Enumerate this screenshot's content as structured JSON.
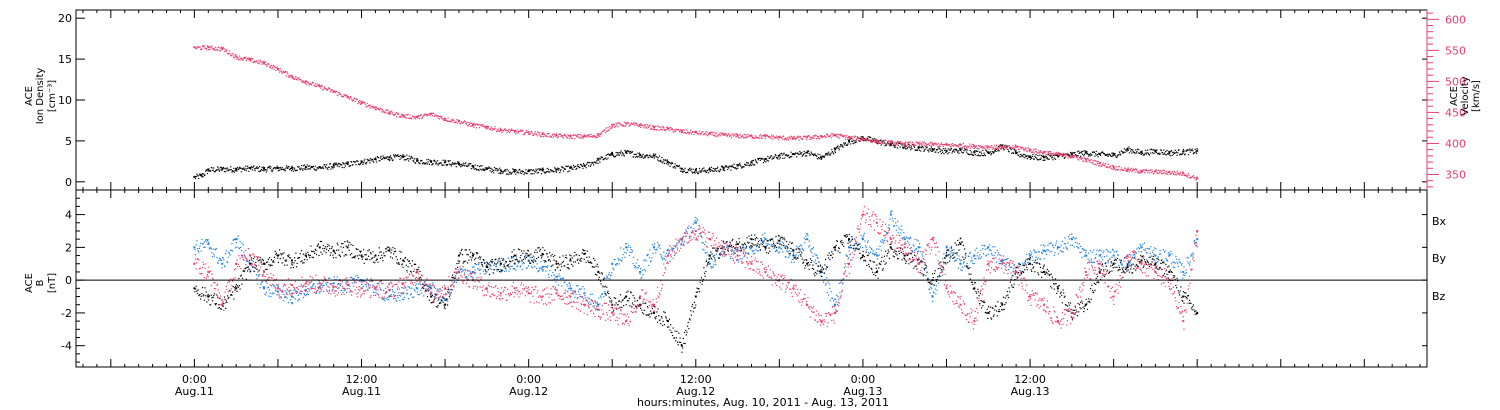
{
  "chart_data": {
    "panels": [
      {
        "type": "scatter",
        "ylabel_left": [
          "ACE",
          "Ion Density",
          "[cm⁻³]"
        ],
        "ylabel_right": [
          "ACE",
          "Velocity",
          "[km/s]"
        ],
        "ylim_left": [
          -1,
          21
        ],
        "yticks_left": [
          0,
          5,
          10,
          15,
          20
        ],
        "ylim_right": [
          325,
          615
        ],
        "yticks_right": [
          350,
          400,
          450,
          500,
          550,
          600
        ],
        "series": [
          {
            "name": "",
            "axis": "left",
            "color": "#000000",
            "x": [
              0,
              0.5,
              1,
              2,
              3,
              4,
              5,
              6,
              7,
              8,
              9,
              10,
              11,
              12,
              13,
              14,
              15,
              16,
              17,
              18,
              19,
              20,
              21,
              22,
              23,
              24,
              25,
              26,
              27,
              28,
              29,
              30,
              31,
              32,
              33,
              34,
              35,
              36,
              37,
              38,
              39,
              40,
              41,
              42,
              43,
              44,
              45,
              46,
              47,
              48,
              49,
              50,
              51,
              52,
              53,
              54,
              55,
              56,
              57,
              58,
              59,
              60,
              61,
              62,
              63,
              64,
              65,
              66,
              67,
              68,
              69,
              70,
              71,
              72
            ],
            "values": [
              0.6,
              0.8,
              1.5,
              1.6,
              1.6,
              1.7,
              1.6,
              1.7,
              1.7,
              1.8,
              1.8,
              2.0,
              2.2,
              2.5,
              2.8,
              3.0,
              3.1,
              2.6,
              2.5,
              2.4,
              2.2,
              1.9,
              1.6,
              1.4,
              1.3,
              1.3,
              1.4,
              1.5,
              1.7,
              2.0,
              2.7,
              3.4,
              3.6,
              3.3,
              3.2,
              2.4,
              1.6,
              1.4,
              1.5,
              1.7,
              2.0,
              2.4,
              2.8,
              3.2,
              3.4,
              3.6,
              3.0,
              4.0,
              5.0,
              5.4,
              5.0,
              4.6,
              4.4,
              4.2,
              4.0,
              3.8,
              3.9,
              3.6,
              3.6,
              4.4,
              3.5,
              3.1,
              3.0,
              3.2,
              3.4,
              3.6,
              3.4,
              3.3,
              4.0,
              3.6,
              3.8,
              3.6,
              3.7,
              3.8
            ]
          },
          {
            "name": "",
            "axis": "right",
            "color": "#e83e6c",
            "x": [
              0,
              1,
              2,
              3,
              4,
              5,
              6,
              7,
              8,
              9,
              10,
              11,
              12,
              13,
              14,
              15,
              16,
              17,
              18,
              19,
              20,
              21,
              22,
              23,
              24,
              25,
              26,
              27,
              28,
              29,
              30,
              31,
              32,
              33,
              34,
              35,
              36,
              37,
              38,
              39,
              40,
              41,
              42,
              43,
              44,
              45,
              46,
              47,
              48,
              49,
              50,
              51,
              52,
              53,
              54,
              55,
              56,
              57,
              58,
              59,
              60,
              61,
              62,
              63,
              64,
              65,
              66,
              67,
              68,
              69,
              70,
              71,
              72
            ],
            "values": [
              555,
              555,
              553,
              540,
              535,
              530,
              520,
              508,
              500,
              492,
              484,
              475,
              466,
              458,
              450,
              445,
              443,
              448,
              440,
              436,
              430,
              427,
              422,
              420,
              418,
              415,
              413,
              412,
              412,
              414,
              430,
              432,
              430,
              426,
              424,
              420,
              418,
              416,
              414,
              413,
              412,
              412,
              410,
              409,
              410,
              412,
              414,
              410,
              408,
              404,
              402,
              400,
              400,
              399,
              398,
              398,
              396,
              395,
              394,
              395,
              390,
              386,
              383,
              380,
              374,
              368,
              362,
              358,
              356,
              355,
              354,
              352,
              344
            ]
          }
        ]
      },
      {
        "type": "scatter",
        "ylabel_left": [
          "ACE",
          "B",
          "[nT]"
        ],
        "ylim": [
          -5.3,
          5.5
        ],
        "yticks": [
          -4,
          -2,
          0,
          2,
          4
        ],
        "zero_line": true,
        "legend": [
          {
            "label": "Bx",
            "color": "#000000"
          },
          {
            "label": "By",
            "color": "#1f7fdc"
          },
          {
            "label": "Bz",
            "color": "#e83e6c"
          }
        ],
        "series": [
          {
            "name": "Bx",
            "color": "#000000",
            "x": [
              0,
              1,
              2,
              3,
              4,
              5,
              6,
              7,
              8,
              9,
              10,
              11,
              12,
              13,
              14,
              15,
              16,
              17,
              18,
              19,
              20,
              21,
              22,
              23,
              24,
              25,
              26,
              27,
              28,
              29,
              30,
              31,
              32,
              33,
              34,
              35,
              36,
              37,
              38,
              39,
              40,
              41,
              42,
              43,
              44,
              45,
              46,
              47,
              48,
              49,
              50,
              51,
              52,
              53,
              54,
              55,
              56,
              57,
              58,
              59,
              60,
              61,
              62,
              63,
              64,
              65,
              66,
              67,
              68,
              69,
              70,
              71,
              72
            ],
            "values": [
              -0.5,
              -1.0,
              -1.5,
              -0.5,
              1.0,
              1.0,
              1.5,
              1.2,
              1.5,
              2.0,
              1.8,
              2.0,
              1.5,
              1.5,
              1.8,
              1.2,
              0.5,
              -1.0,
              -1.5,
              1.5,
              1.5,
              0.8,
              1.0,
              1.5,
              1.5,
              1.6,
              1.0,
              1.2,
              1.6,
              0.5,
              -1.5,
              -1.0,
              -1.5,
              -2.0,
              -2.5,
              -4.0,
              -1.0,
              1.5,
              2.0,
              2.2,
              2.5,
              2.0,
              2.4,
              1.8,
              1.0,
              0.5,
              2.0,
              2.5,
              1.5,
              0.5,
              2.0,
              1.5,
              1.0,
              0.0,
              1.5,
              2.2,
              -0.5,
              -2.0,
              -1.5,
              0.5,
              1.0,
              0.5,
              -0.5,
              -2.0,
              -1.5,
              0.5,
              1.0,
              0.8,
              1.2,
              1.0,
              0.5,
              -1.0,
              -2.0
            ]
          },
          {
            "name": "By",
            "color": "#1f7fdc",
            "x": [
              0,
              1,
              2,
              3,
              4,
              5,
              6,
              7,
              8,
              9,
              10,
              11,
              12,
              13,
              14,
              15,
              16,
              17,
              18,
              19,
              20,
              21,
              22,
              23,
              24,
              25,
              26,
              27,
              28,
              29,
              30,
              31,
              32,
              33,
              34,
              35,
              36,
              37,
              38,
              39,
              40,
              41,
              42,
              43,
              44,
              45,
              46,
              47,
              48,
              49,
              50,
              51,
              52,
              53,
              54,
              55,
              56,
              57,
              58,
              59,
              60,
              61,
              62,
              63,
              64,
              65,
              66,
              67,
              68,
              69,
              70,
              71,
              72
            ],
            "values": [
              2.0,
              2.2,
              1.0,
              2.5,
              1.0,
              -0.5,
              -0.7,
              -1.0,
              -0.6,
              -0.4,
              -0.2,
              -0.3,
              0.0,
              -0.5,
              -1.0,
              -0.8,
              -0.5,
              -0.5,
              -1.2,
              0.5,
              0.5,
              0.8,
              1.0,
              1.0,
              1.2,
              0.8,
              0.2,
              -0.5,
              -0.8,
              -1.5,
              1.0,
              2.0,
              0.5,
              2.0,
              1.5,
              2.5,
              3.5,
              1.0,
              2.0,
              1.5,
              2.0,
              2.5,
              2.0,
              1.5,
              2.5,
              0.5,
              -1.5,
              2.0,
              2.5,
              1.5,
              4.0,
              2.5,
              2.0,
              -1.0,
              2.0,
              1.0,
              1.5,
              2.0,
              1.2,
              0.5,
              1.5,
              1.8,
              2.0,
              2.5,
              1.5,
              1.5,
              1.5,
              1.0,
              2.0,
              1.5,
              1.5,
              0.5,
              2.5
            ]
          },
          {
            "name": "Bz",
            "color": "#e83e6c",
            "x": [
              0,
              1,
              2,
              3,
              4,
              5,
              6,
              7,
              8,
              9,
              10,
              11,
              12,
              13,
              14,
              15,
              16,
              17,
              18,
              19,
              20,
              21,
              22,
              23,
              24,
              25,
              26,
              27,
              28,
              29,
              30,
              31,
              32,
              33,
              34,
              35,
              36,
              37,
              38,
              39,
              40,
              41,
              42,
              43,
              44,
              45,
              46,
              47,
              48,
              49,
              50,
              51,
              52,
              53,
              54,
              55,
              56,
              57,
              58,
              59,
              60,
              61,
              62,
              63,
              64,
              65,
              66,
              67,
              68,
              69,
              70,
              71,
              72
            ],
            "values": [
              1.0,
              0.5,
              -1.5,
              1.0,
              1.5,
              0.5,
              -0.5,
              -0.3,
              -0.2,
              -0.2,
              -0.4,
              -0.3,
              -0.5,
              -0.5,
              -0.6,
              -0.2,
              0.5,
              -0.8,
              -0.5,
              0.5,
              0.0,
              -0.5,
              -0.8,
              -0.5,
              -0.8,
              -1.0,
              -0.8,
              -1.0,
              -1.5,
              -1.8,
              -2.0,
              -2.5,
              -1.0,
              -1.5,
              1.5,
              2.5,
              3.0,
              2.5,
              2.0,
              1.5,
              1.0,
              0.5,
              0.0,
              -0.5,
              -1.5,
              -2.5,
              -2.0,
              1.0,
              4.0,
              3.5,
              2.5,
              2.0,
              1.0,
              2.5,
              -0.5,
              -1.5,
              -2.5,
              1.0,
              1.0,
              0.5,
              -1.0,
              -1.5,
              -2.5,
              -2.0,
              0.5,
              1.0,
              -1.0,
              1.5,
              1.0,
              0.5,
              0.0,
              -2.5,
              3.0
            ]
          }
        ]
      }
    ],
    "x_unit": "hours",
    "xlim": [
      -8.5,
      88.5
    ],
    "xticks": [
      {
        "x": 0,
        "line1": "0:00",
        "line2": "Aug.11"
      },
      {
        "x": 12,
        "line1": "12:00",
        "line2": "Aug.11"
      },
      {
        "x": 24,
        "line1": "0:00",
        "line2": "Aug.12"
      },
      {
        "x": 36,
        "line1": "12:00",
        "line2": "Aug.12"
      },
      {
        "x": 48,
        "line1": "0:00",
        "line2": "Aug.13"
      },
      {
        "x": 60,
        "line1": "12:00",
        "line2": "Aug.13"
      }
    ],
    "xlabel": "hours:minutes, Aug. 10, 2011 - Aug. 13, 2011"
  }
}
